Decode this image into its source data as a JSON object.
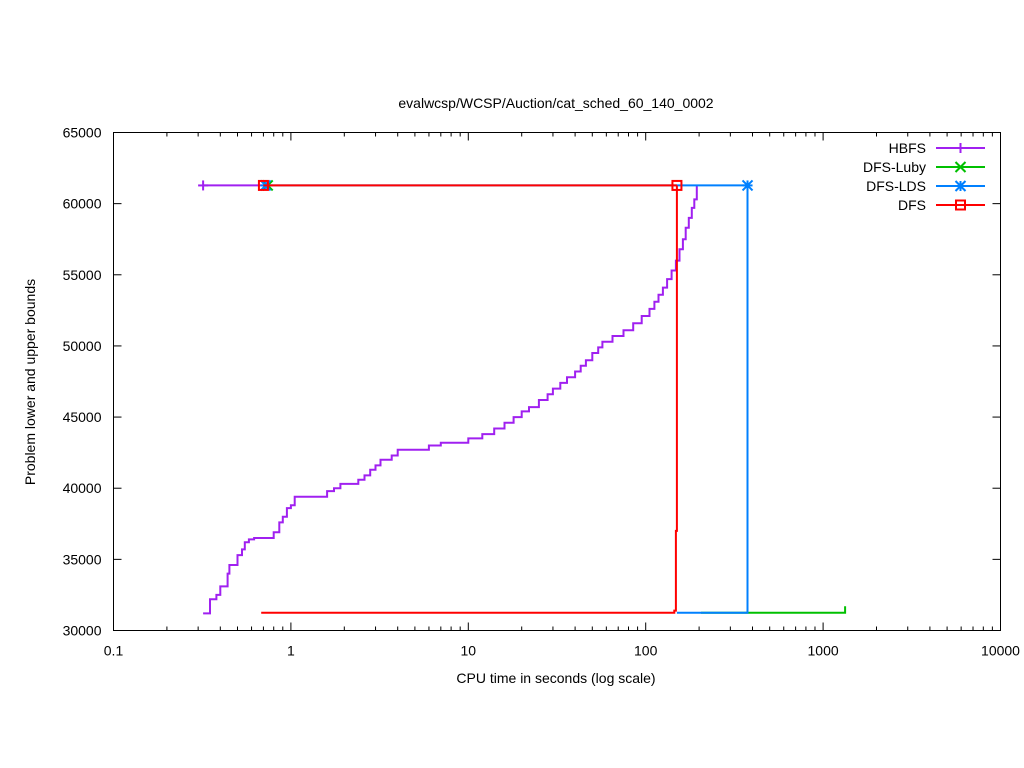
{
  "chart_data": {
    "type": "line",
    "title": "evalwcsp/WCSP/Auction/cat_sched_60_140_0002",
    "xlabel": "CPU time in seconds (log scale)",
    "ylabel": "Problem lower and upper bounds",
    "x_scale": "log",
    "xlim": [
      0.1,
      10000
    ],
    "ylim": [
      30000,
      65000
    ],
    "x_ticks": [
      0.1,
      1,
      10,
      100,
      1000,
      10000
    ],
    "x_tick_labels": [
      "0.1",
      "1",
      "10",
      "100",
      "1000",
      "10000"
    ],
    "y_ticks": [
      30000,
      35000,
      40000,
      45000,
      50000,
      55000,
      60000,
      65000
    ],
    "y_tick_labels": [
      "30000",
      "35000",
      "40000",
      "45000",
      "50000",
      "55000",
      "60000",
      "65000"
    ],
    "grid": false,
    "legend_position": "top-right",
    "series": [
      {
        "name": "HBFS",
        "color": "#a020f0",
        "marker": "plus",
        "upper_bound": [
          [
            0.32,
            61280
          ],
          [
            0.74,
            61280
          ]
        ],
        "lower_bound": [
          [
            0.32,
            31200
          ],
          [
            0.35,
            31200
          ],
          [
            0.35,
            32200
          ],
          [
            0.38,
            32200
          ],
          [
            0.38,
            32500
          ],
          [
            0.4,
            32500
          ],
          [
            0.4,
            33100
          ],
          [
            0.44,
            33100
          ],
          [
            0.44,
            34000
          ],
          [
            0.45,
            34000
          ],
          [
            0.45,
            34600
          ],
          [
            0.5,
            34600
          ],
          [
            0.5,
            35300
          ],
          [
            0.53,
            35300
          ],
          [
            0.53,
            35700
          ],
          [
            0.55,
            35700
          ],
          [
            0.55,
            36200
          ],
          [
            0.58,
            36200
          ],
          [
            0.58,
            36400
          ],
          [
            0.62,
            36400
          ],
          [
            0.62,
            36500
          ],
          [
            0.8,
            36500
          ],
          [
            0.8,
            36900
          ],
          [
            0.86,
            36900
          ],
          [
            0.86,
            37600
          ],
          [
            0.9,
            37600
          ],
          [
            0.9,
            38000
          ],
          [
            0.95,
            38000
          ],
          [
            0.95,
            38600
          ],
          [
            1.0,
            38600
          ],
          [
            1.0,
            38800
          ],
          [
            1.05,
            38800
          ],
          [
            1.05,
            39400
          ],
          [
            1.6,
            39400
          ],
          [
            1.6,
            39800
          ],
          [
            1.75,
            39800
          ],
          [
            1.75,
            40000
          ],
          [
            1.9,
            40000
          ],
          [
            1.9,
            40300
          ],
          [
            2.4,
            40300
          ],
          [
            2.4,
            40600
          ],
          [
            2.6,
            40600
          ],
          [
            2.6,
            40900
          ],
          [
            2.8,
            40900
          ],
          [
            2.8,
            41300
          ],
          [
            3.0,
            41300
          ],
          [
            3.0,
            41600
          ],
          [
            3.2,
            41600
          ],
          [
            3.2,
            42000
          ],
          [
            3.7,
            42000
          ],
          [
            3.7,
            42300
          ],
          [
            4.0,
            42300
          ],
          [
            4.0,
            42700
          ],
          [
            6.0,
            42700
          ],
          [
            6.0,
            43000
          ],
          [
            7.0,
            43000
          ],
          [
            7.0,
            43200
          ],
          [
            10.0,
            43200
          ],
          [
            10.0,
            43500
          ],
          [
            12.0,
            43500
          ],
          [
            12.0,
            43800
          ],
          [
            14.0,
            43800
          ],
          [
            14.0,
            44200
          ],
          [
            16.0,
            44200
          ],
          [
            16.0,
            44600
          ],
          [
            18.0,
            44600
          ],
          [
            18.0,
            45000
          ],
          [
            20.0,
            45000
          ],
          [
            20.0,
            45400
          ],
          [
            22.0,
            45400
          ],
          [
            22.0,
            45700
          ],
          [
            25.0,
            45700
          ],
          [
            25.0,
            46200
          ],
          [
            28.0,
            46200
          ],
          [
            28.0,
            46600
          ],
          [
            30.0,
            46600
          ],
          [
            30.0,
            47000
          ],
          [
            33.0,
            47000
          ],
          [
            33.0,
            47400
          ],
          [
            36.0,
            47400
          ],
          [
            36.0,
            47800
          ],
          [
            40.0,
            47800
          ],
          [
            40.0,
            48200
          ],
          [
            43.0,
            48200
          ],
          [
            43.0,
            48600
          ],
          [
            46.0,
            48600
          ],
          [
            46.0,
            49000
          ],
          [
            50.0,
            49000
          ],
          [
            50.0,
            49500
          ],
          [
            54.0,
            49500
          ],
          [
            54.0,
            49900
          ],
          [
            57.0,
            49900
          ],
          [
            57.0,
            50300
          ],
          [
            65.0,
            50300
          ],
          [
            65.0,
            50700
          ],
          [
            75.0,
            50700
          ],
          [
            75.0,
            51100
          ],
          [
            85.0,
            51100
          ],
          [
            85.0,
            51600
          ],
          [
            95.0,
            51600
          ],
          [
            95.0,
            52100
          ],
          [
            105.0,
            52100
          ],
          [
            105.0,
            52600
          ],
          [
            112.0,
            52600
          ],
          [
            112.0,
            53100
          ],
          [
            118.0,
            53100
          ],
          [
            118.0,
            53600
          ],
          [
            125.0,
            53600
          ],
          [
            125.0,
            54100
          ],
          [
            132.0,
            54100
          ],
          [
            132.0,
            54700
          ],
          [
            140.0,
            54700
          ],
          [
            140.0,
            55300
          ],
          [
            148.0,
            55300
          ],
          [
            148.0,
            56000
          ],
          [
            155.0,
            56000
          ],
          [
            155.0,
            56800
          ],
          [
            162.0,
            56800
          ],
          [
            162.0,
            57500
          ],
          [
            168.0,
            57500
          ],
          [
            168.0,
            58300
          ],
          [
            175.0,
            58300
          ],
          [
            175.0,
            59000
          ],
          [
            182.0,
            59000
          ],
          [
            182.0,
            59700
          ],
          [
            188.0,
            59700
          ],
          [
            188.0,
            60300
          ],
          [
            194.0,
            60300
          ],
          [
            194.0,
            61300
          ]
        ]
      },
      {
        "name": "DFS-Luby",
        "color": "#00c000",
        "marker": "cross",
        "upper_bound": [
          [
            0.74,
            61280
          ]
        ],
        "lower_bound": [
          [
            205.0,
            31250
          ],
          [
            1330.0,
            31250
          ],
          [
            1330.0,
            31700
          ]
        ]
      },
      {
        "name": "DFS-LDS",
        "color": "#0080ff",
        "marker": "star",
        "upper_bound": [
          [
            0.72,
            61280
          ],
          [
            375.0,
            61280
          ]
        ],
        "lower_bound": [
          [
            150.0,
            31250
          ],
          [
            375.0,
            31250
          ],
          [
            375.0,
            61280
          ]
        ]
      },
      {
        "name": "DFS",
        "color": "#ff0000",
        "marker": "box",
        "upper_bound": [
          [
            0.7,
            61280
          ],
          [
            150.0,
            61280
          ]
        ],
        "lower_bound": [
          [
            0.68,
            31250
          ],
          [
            145.0,
            31250
          ],
          [
            145.0,
            31400
          ],
          [
            148.0,
            31400
          ],
          [
            148.0,
            37000
          ],
          [
            150.0,
            37000
          ],
          [
            150.0,
            61280
          ]
        ]
      }
    ]
  }
}
